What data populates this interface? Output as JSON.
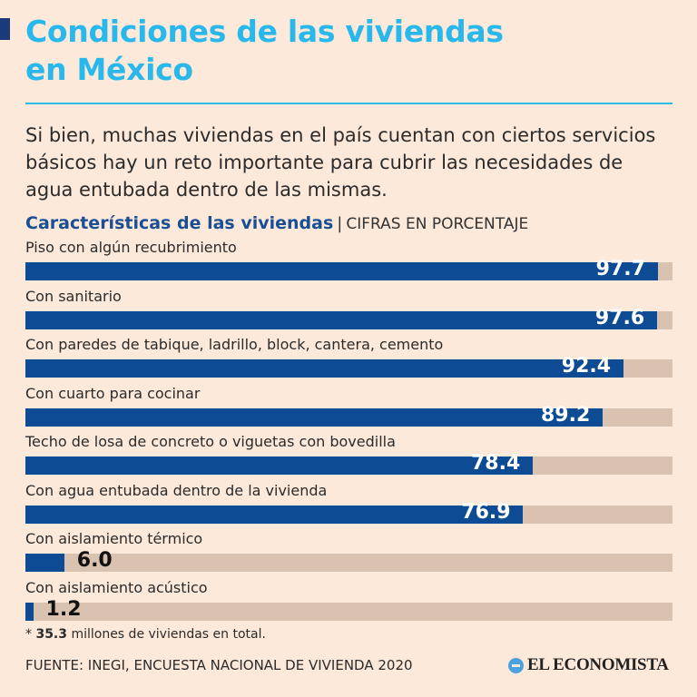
{
  "header": {
    "title_line1": "Condiciones de las viviendas",
    "title_line2": "en México",
    "subtitle": "Si bien, muchas viviendas en el país cuentan con ciertos servicios básicos hay un reto importante para cubrir las necesidades de agua entubada dentro de las mismas."
  },
  "colors": {
    "background": "#fce9da",
    "title": "#29b8ec",
    "bar_fill": "#0d4c94",
    "bar_track": "#d9c3b0",
    "chart_title": "#1a4f94"
  },
  "chart_data": {
    "type": "bar",
    "orientation": "horizontal",
    "title": "Características de las viviendas",
    "unit_label": "CIFRAS EN PORCENTAJE",
    "xlim": [
      0,
      100
    ],
    "categories": [
      "Piso con algún recubrimiento",
      "Con sanitario",
      "Con paredes de tabique, ladrillo, block, cantera, cemento",
      "Con cuarto para cocinar",
      "Techo de losa de concreto o viguetas con bovedilla",
      "Con agua entubada dentro de la vivienda",
      "Con aislamiento térmico",
      "Con aislamiento acústico"
    ],
    "values": [
      97.7,
      97.6,
      92.4,
      89.2,
      78.4,
      76.9,
      6.0,
      1.2
    ],
    "value_labels": [
      "97.7",
      "97.6",
      "92.4",
      "89.2",
      "78.4",
      "76.9",
      "6.0",
      "1.2"
    ]
  },
  "footnote": {
    "prefix": "* ",
    "value": "35.3",
    "text": " millones de viviendas en total."
  },
  "source": "FUENTE: INEGI, ENCUESTA NACIONAL DE VIVIENDA 2020",
  "brand": "EL ECONOMISTA"
}
